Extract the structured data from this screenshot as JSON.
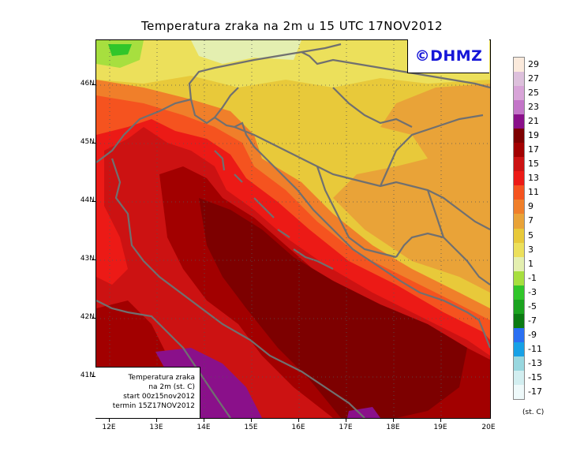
{
  "title": "Temperatura zraka na 2m u 15 UTC 17NOV2012",
  "logo": "©DHMZ",
  "info": {
    "line1": "Temperatura zraka",
    "line2": "na 2m (st. C)",
    "line3": "start 00z15nov2012",
    "line4": "termin 15Z17NOV2012"
  },
  "legend_unit": "(st. C)",
  "x_ticks": [
    "12E",
    "13E",
    "14E",
    "15E",
    "16E",
    "17E",
    "18E",
    "19E",
    "20E"
  ],
  "y_ticks": [
    "46N",
    "45N",
    "44N",
    "43N",
    "42N",
    "41N"
  ],
  "legend": [
    {
      "label": "29",
      "color": "#fbeadc"
    },
    {
      "label": "27",
      "color": "#ddc0dc"
    },
    {
      "label": "25",
      "color": "#d8a4d8"
    },
    {
      "label": "23",
      "color": "#c375c8"
    },
    {
      "label": "21",
      "color": "#8a108a"
    },
    {
      "label": "19",
      "color": "#7d0000"
    },
    {
      "label": "17",
      "color": "#a20000"
    },
    {
      "label": "15",
      "color": "#cc1212"
    },
    {
      "label": "13",
      "color": "#ec1a16"
    },
    {
      "label": "11",
      "color": "#f5531f"
    },
    {
      "label": "9",
      "color": "#f07f2a"
    },
    {
      "label": "7",
      "color": "#e9a338"
    },
    {
      "label": "5",
      "color": "#e8c93a"
    },
    {
      "label": "3",
      "color": "#ece05b"
    },
    {
      "label": "1",
      "color": "#e4efb0"
    },
    {
      "label": "-1",
      "color": "#a7df3f"
    },
    {
      "label": "-3",
      "color": "#31c62a"
    },
    {
      "label": "-5",
      "color": "#1ba31f"
    },
    {
      "label": "-7",
      "color": "#0b7b12"
    },
    {
      "label": "-9",
      "color": "#2a6ff2"
    },
    {
      "label": "-11",
      "color": "#17a1e6"
    },
    {
      "label": "-13",
      "color": "#98d7df"
    },
    {
      "label": "-15",
      "color": "#d2eef0"
    },
    {
      "label": "-17",
      "color": "#eef9fa"
    }
  ]
}
